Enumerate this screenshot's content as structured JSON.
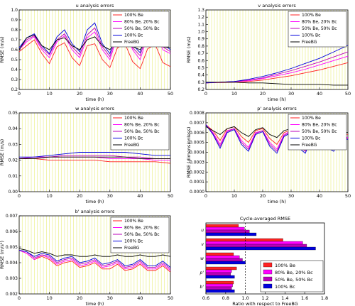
{
  "series_colors": [
    "#ff2222",
    "#ff00ff",
    "#bb00bb",
    "#0000dd",
    "#000000"
  ],
  "legend_labels": [
    "100% Be",
    "80% Be, 20% Bc",
    "50% Be, 50% Bc",
    "100% Bc",
    "FreeBG"
  ],
  "chart_data": [
    {
      "type": "line",
      "title": "u analysis errors",
      "xlabel": "time (h)",
      "ylabel": "RMSE (m/s)",
      "xlim": [
        0,
        50
      ],
      "ylim": [
        0.2,
        1.0
      ],
      "xticks": [
        "0",
        "10",
        "20",
        "30",
        "40",
        "50"
      ],
      "yticks": [
        "0.2",
        "0.3",
        "0.4",
        "0.5",
        "0.6",
        "0.7",
        "0.8",
        "0.9",
        "1.0"
      ],
      "legend": "top-right",
      "x": [
        0,
        2.5,
        5,
        7.5,
        10,
        12.5,
        15,
        17.5,
        20,
        22.5,
        25,
        27.5,
        30,
        32.5,
        35,
        37.5,
        40,
        42.5,
        45,
        47.5,
        50
      ],
      "series": [
        {
          "name": "100% Be",
          "values": [
            0.58,
            0.64,
            0.7,
            0.56,
            0.46,
            0.63,
            0.67,
            0.52,
            0.44,
            0.64,
            0.66,
            0.5,
            0.42,
            0.62,
            0.66,
            0.48,
            0.41,
            0.61,
            0.65,
            0.47,
            0.43
          ]
        },
        {
          "name": "80% Be, 20% Bc",
          "values": [
            0.6,
            0.68,
            0.73,
            0.6,
            0.52,
            0.68,
            0.74,
            0.6,
            0.52,
            0.72,
            0.78,
            0.6,
            0.5,
            0.74,
            0.8,
            0.6,
            0.5,
            0.74,
            0.8,
            0.6,
            0.56
          ]
        },
        {
          "name": "50% Be, 50% Bc",
          "values": [
            0.6,
            0.7,
            0.74,
            0.62,
            0.55,
            0.7,
            0.76,
            0.63,
            0.55,
            0.75,
            0.82,
            0.63,
            0.53,
            0.77,
            0.84,
            0.62,
            0.54,
            0.78,
            0.84,
            0.63,
            0.58
          ]
        },
        {
          "name": "100% Bc",
          "values": [
            0.62,
            0.72,
            0.76,
            0.64,
            0.56,
            0.73,
            0.8,
            0.66,
            0.58,
            0.8,
            0.87,
            0.66,
            0.56,
            0.82,
            0.9,
            0.65,
            0.57,
            0.84,
            0.9,
            0.66,
            0.6
          ]
        },
        {
          "name": "FreeBG",
          "values": [
            0.6,
            0.72,
            0.75,
            0.64,
            0.6,
            0.7,
            0.72,
            0.64,
            0.6,
            0.7,
            0.73,
            0.64,
            0.6,
            0.7,
            0.72,
            0.63,
            0.6,
            0.7,
            0.72,
            0.63,
            0.62
          ]
        }
      ]
    },
    {
      "type": "line",
      "title": "v analysis errors",
      "xlabel": "time (h)",
      "ylabel": "RMSE (m/s)",
      "xlim": [
        0,
        50
      ],
      "ylim": [
        0.2,
        1.3
      ],
      "xticks": [
        "0",
        "10",
        "20",
        "30",
        "40",
        "50"
      ],
      "yticks": [
        "0.2",
        "0.3",
        "0.4",
        "0.5",
        "0.6",
        "0.7",
        "0.8",
        "0.9",
        "1.0",
        "1.1",
        "1.2",
        "1.3"
      ],
      "legend": "top-right",
      "x": [
        0,
        5,
        10,
        15,
        20,
        25,
        30,
        35,
        40,
        45,
        50
      ],
      "series": [
        {
          "name": "100% Be",
          "values": [
            0.29,
            0.295,
            0.3,
            0.31,
            0.33,
            0.36,
            0.39,
            0.43,
            0.47,
            0.52,
            0.57
          ]
        },
        {
          "name": "80% Be, 20% Bc",
          "values": [
            0.29,
            0.3,
            0.31,
            0.32,
            0.35,
            0.39,
            0.43,
            0.48,
            0.54,
            0.6,
            0.66
          ]
        },
        {
          "name": "50% Be, 50% Bc",
          "values": [
            0.29,
            0.3,
            0.31,
            0.33,
            0.36,
            0.41,
            0.46,
            0.52,
            0.58,
            0.65,
            0.72
          ]
        },
        {
          "name": "100% Bc",
          "values": [
            0.29,
            0.3,
            0.31,
            0.34,
            0.38,
            0.43,
            0.49,
            0.56,
            0.63,
            0.72,
            0.81
          ]
        },
        {
          "name": "FreeBG",
          "values": [
            0.3,
            0.3,
            0.3,
            0.29,
            0.29,
            0.28,
            0.27,
            0.27,
            0.27,
            0.26,
            0.26
          ]
        }
      ]
    },
    {
      "type": "line",
      "title": "w analysis errors",
      "xlabel": "time (h)",
      "ylabel": "RMSE (m/s)",
      "xlim": [
        0,
        50
      ],
      "ylim": [
        0.0,
        0.05
      ],
      "xticks": [
        "0",
        "10",
        "20",
        "30",
        "40",
        "50"
      ],
      "yticks": [
        "0.00",
        "0.01",
        "0.02",
        "0.03",
        "0.04",
        "0.05"
      ],
      "legend": "top-right",
      "x": [
        0,
        5,
        10,
        15,
        20,
        25,
        30,
        35,
        40,
        45,
        50
      ],
      "series": [
        {
          "name": "100% Be",
          "values": [
            0.021,
            0.021,
            0.02,
            0.02,
            0.02,
            0.02,
            0.019,
            0.019,
            0.019,
            0.019,
            0.018
          ]
        },
        {
          "name": "80% Be, 20% Bc",
          "values": [
            0.021,
            0.022,
            0.022,
            0.022,
            0.022,
            0.022,
            0.021,
            0.021,
            0.021,
            0.02,
            0.02
          ]
        },
        {
          "name": "50% Be, 50% Bc",
          "values": [
            0.021,
            0.022,
            0.022,
            0.023,
            0.023,
            0.023,
            0.023,
            0.022,
            0.022,
            0.021,
            0.021
          ]
        },
        {
          "name": "100% Bc",
          "values": [
            0.022,
            0.022,
            0.023,
            0.024,
            0.025,
            0.025,
            0.025,
            0.025,
            0.024,
            0.023,
            0.023
          ]
        },
        {
          "name": "FreeBG",
          "values": [
            0.021,
            0.021,
            0.022,
            0.022,
            0.022,
            0.022,
            0.022,
            0.022,
            0.021,
            0.021,
            0.021
          ]
        }
      ]
    },
    {
      "type": "line",
      "title": "p' analysis errors",
      "xlabel": "time (h)",
      "ylabel": "RMSE (dimensionless)",
      "xlim": [
        0,
        50
      ],
      "ylim": [
        0.0,
        0.0008
      ],
      "xticks": [
        "0",
        "10",
        "20",
        "30",
        "40",
        "50"
      ],
      "yticks": [
        "0.0000",
        "0.0001",
        "0.0002",
        "0.0003",
        "0.0004",
        "0.0005",
        "0.0006",
        "0.0007",
        "0.0008"
      ],
      "legend": "top-right",
      "x": [
        0,
        2.5,
        5,
        7.5,
        10,
        12.5,
        15,
        17.5,
        20,
        22.5,
        25,
        27.5,
        30,
        32.5,
        35,
        37.5,
        40,
        42.5,
        45,
        47.5,
        50
      ],
      "series": [
        {
          "name": "100% Be",
          "values": [
            0.00068,
            0.00062,
            0.00052,
            0.00064,
            0.00066,
            0.00056,
            0.0005,
            0.00062,
            0.00064,
            0.00054,
            0.00048,
            0.0006,
            0.00063,
            0.00052,
            0.00048,
            0.0006,
            0.00062,
            0.00052,
            0.0005,
            0.0006,
            0.00058
          ]
        },
        {
          "name": "80% Be, 20% Bc",
          "values": [
            0.00068,
            0.0006,
            0.00048,
            0.00062,
            0.00064,
            0.00052,
            0.00045,
            0.0006,
            0.00062,
            0.0005,
            0.00043,
            0.00058,
            0.00062,
            0.00049,
            0.00043,
            0.00058,
            0.00061,
            0.00049,
            0.00045,
            0.00057,
            0.00055
          ]
        },
        {
          "name": "50% Be, 50% Bc",
          "values": [
            0.00068,
            0.00059,
            0.00046,
            0.00061,
            0.00064,
            0.0005,
            0.00043,
            0.00059,
            0.00062,
            0.00048,
            0.00041,
            0.00057,
            0.00061,
            0.00047,
            0.00041,
            0.00057,
            0.0006,
            0.00047,
            0.00043,
            0.00056,
            0.00054
          ]
        },
        {
          "name": "100% Bc",
          "values": [
            0.00068,
            0.00058,
            0.00044,
            0.0006,
            0.00063,
            0.00048,
            0.00041,
            0.00058,
            0.00061,
            0.00046,
            0.00039,
            0.00056,
            0.0006,
            0.00045,
            0.00039,
            0.00056,
            0.00059,
            0.00045,
            0.00041,
            0.00055,
            0.00053
          ]
        },
        {
          "name": "FreeBG",
          "values": [
            0.00066,
            0.00062,
            0.00058,
            0.00064,
            0.00066,
            0.0006,
            0.00056,
            0.00063,
            0.00065,
            0.00058,
            0.00055,
            0.00062,
            0.00064,
            0.00057,
            0.00055,
            0.00061,
            0.00063,
            0.00057,
            0.00056,
            0.00061,
            0.0006
          ]
        }
      ]
    },
    {
      "type": "line",
      "title": "b' analysis errors",
      "xlabel": "time (h)",
      "ylabel": "RMSE (m/s²)",
      "xlim": [
        0,
        50
      ],
      "ylim": [
        0.002,
        0.007
      ],
      "xticks": [
        "0",
        "10",
        "20",
        "30",
        "40",
        "50"
      ],
      "yticks": [
        "0.002",
        "0.003",
        "0.004",
        "0.005",
        "0.006",
        "0.007"
      ],
      "legend": "top-right",
      "x": [
        0,
        2.5,
        5,
        7.5,
        10,
        12.5,
        15,
        17.5,
        20,
        22.5,
        25,
        27.5,
        30,
        32.5,
        35,
        37.5,
        40,
        42.5,
        45,
        47.5,
        50
      ],
      "series": [
        {
          "name": "100% Be",
          "values": [
            0.0048,
            0.0046,
            0.0042,
            0.0044,
            0.0042,
            0.0038,
            0.004,
            0.0041,
            0.0037,
            0.0038,
            0.004,
            0.0036,
            0.0036,
            0.0039,
            0.0035,
            0.0036,
            0.0039,
            0.0035,
            0.0035,
            0.0038,
            0.0034
          ]
        },
        {
          "name": "80% Be, 20% Bc",
          "values": [
            0.0048,
            0.0046,
            0.0042,
            0.0045,
            0.0043,
            0.0039,
            0.0041,
            0.0042,
            0.0038,
            0.0039,
            0.0041,
            0.0037,
            0.0038,
            0.004,
            0.0036,
            0.0037,
            0.004,
            0.0036,
            0.0036,
            0.0039,
            0.0035
          ]
        },
        {
          "name": "50% Be, 50% Bc",
          "values": [
            0.0048,
            0.0047,
            0.0043,
            0.0045,
            0.0044,
            0.004,
            0.0042,
            0.0043,
            0.0039,
            0.004,
            0.0042,
            0.0038,
            0.0039,
            0.0041,
            0.0037,
            0.0038,
            0.0041,
            0.0037,
            0.0037,
            0.004,
            0.0036
          ]
        },
        {
          "name": "100% Bc",
          "values": [
            0.0048,
            0.0047,
            0.0044,
            0.0046,
            0.0045,
            0.0041,
            0.0043,
            0.0044,
            0.004,
            0.0041,
            0.0043,
            0.0039,
            0.004,
            0.0042,
            0.0038,
            0.0039,
            0.0042,
            0.0038,
            0.0038,
            0.0041,
            0.0037
          ]
        },
        {
          "name": "FreeBG",
          "values": [
            0.0049,
            0.0048,
            0.0046,
            0.0047,
            0.0046,
            0.0044,
            0.0045,
            0.0045,
            0.0044,
            0.0044,
            0.0045,
            0.0044,
            0.0044,
            0.0045,
            0.0044,
            0.0044,
            0.0045,
            0.0044,
            0.0044,
            0.0045,
            0.0044
          ]
        }
      ]
    },
    {
      "type": "bar",
      "orientation": "horizontal",
      "title": "Cycle-averaged RMSE",
      "xlabel": "Ratio with respect to FreeBG",
      "ylabel": "",
      "xlim": [
        0.6,
        1.8
      ],
      "xticks": [
        "0.6",
        "0.8",
        "1.0",
        "1.2",
        "1.4",
        "1.6",
        "1.8"
      ],
      "reference_line": 1.0,
      "legend": "bottom-right",
      "categories": [
        "u",
        "v",
        "w",
        "p'",
        "b'"
      ],
      "series": [
        {
          "name": "100% Be",
          "values": [
            0.93,
            1.38,
            0.88,
            0.91,
            0.88
          ]
        },
        {
          "name": "80% Be, 20% Bc",
          "values": [
            0.99,
            1.58,
            0.94,
            0.86,
            0.87
          ]
        },
        {
          "name": "50% Be, 50% Bc",
          "values": [
            1.04,
            1.62,
            0.97,
            0.85,
            0.86
          ]
        },
        {
          "name": "100% Bc",
          "values": [
            1.11,
            1.71,
            1.0,
            0.89,
            0.89
          ]
        }
      ]
    }
  ]
}
